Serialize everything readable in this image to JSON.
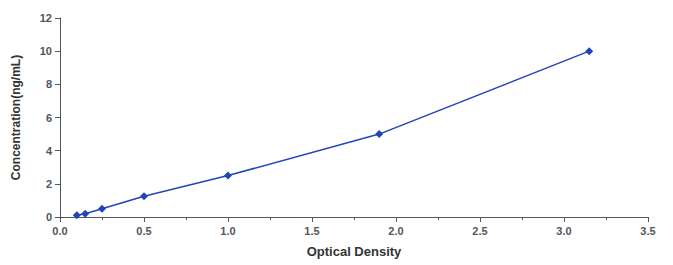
{
  "chart_data": {
    "type": "line",
    "x": [
      0.1,
      0.15,
      0.25,
      0.5,
      1.0,
      1.9,
      3.15
    ],
    "values": [
      0.1,
      0.2,
      0.5,
      1.25,
      2.5,
      5.0,
      10.0
    ],
    "color": "#2244BB",
    "marker": "diamond",
    "line_style": "solid",
    "xlabel": "Optical Density",
    "ylabel": "Concentration(ng/mL)",
    "xlim": [
      0,
      3.5
    ],
    "ylim": [
      0,
      12
    ],
    "xticks": [
      {
        "value": 0.0,
        "label": "0.0"
      },
      0.5,
      {
        "value": 1.0,
        "label": "1.0"
      },
      1.5,
      {
        "value": 2.0,
        "label": "2.0"
      },
      2.5,
      {
        "value": 3.0,
        "label": "3.0"
      },
      3.5
    ],
    "yticks": [
      0,
      2,
      4,
      6,
      8,
      10,
      12
    ],
    "grid": false
  }
}
